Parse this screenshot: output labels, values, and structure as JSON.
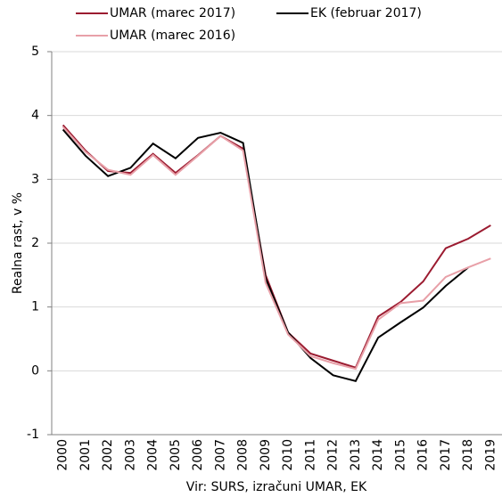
{
  "chart_data": {
    "type": "line",
    "y_label": "Realna rast, v %",
    "x_label": "Vir: SURS, izračuni UMAR, EK",
    "categories": [
      "2000",
      "2001",
      "2002",
      "2003",
      "2004",
      "2005",
      "2006",
      "2007",
      "2008",
      "2009",
      "2010",
      "2011",
      "2012",
      "2013",
      "2014",
      "2015",
      "2016",
      "2017",
      "2018",
      "2019"
    ],
    "series": [
      {
        "name": "UMAR (marec 2017)",
        "color": "#9b1b30",
        "values": [
          3.85,
          3.45,
          3.13,
          3.1,
          3.4,
          3.1,
          3.38,
          3.68,
          3.48,
          1.5,
          0.6,
          0.27,
          0.16,
          0.05,
          0.85,
          1.08,
          1.4,
          1.92,
          2.07,
          2.28
        ]
      },
      {
        "name": "EK (februar 2017)",
        "color": "#000000",
        "values": [
          3.78,
          3.37,
          3.05,
          3.18,
          3.56,
          3.33,
          3.65,
          3.73,
          3.57,
          1.45,
          0.6,
          0.2,
          -0.07,
          -0.16,
          0.52,
          0.76,
          0.99,
          1.33,
          1.62,
          null
        ]
      },
      {
        "name": "UMAR (marec 2016)",
        "color": "#e8a0a8",
        "values": [
          3.82,
          3.43,
          3.15,
          3.07,
          3.38,
          3.07,
          3.37,
          3.68,
          3.45,
          1.38,
          0.57,
          0.23,
          0.12,
          0.03,
          0.8,
          1.06,
          1.1,
          1.47,
          1.62,
          1.76
        ]
      }
    ],
    "ylim": [
      -1,
      5
    ],
    "yticks": [
      -1,
      0,
      1,
      2,
      3,
      4,
      5
    ],
    "grid": true
  }
}
